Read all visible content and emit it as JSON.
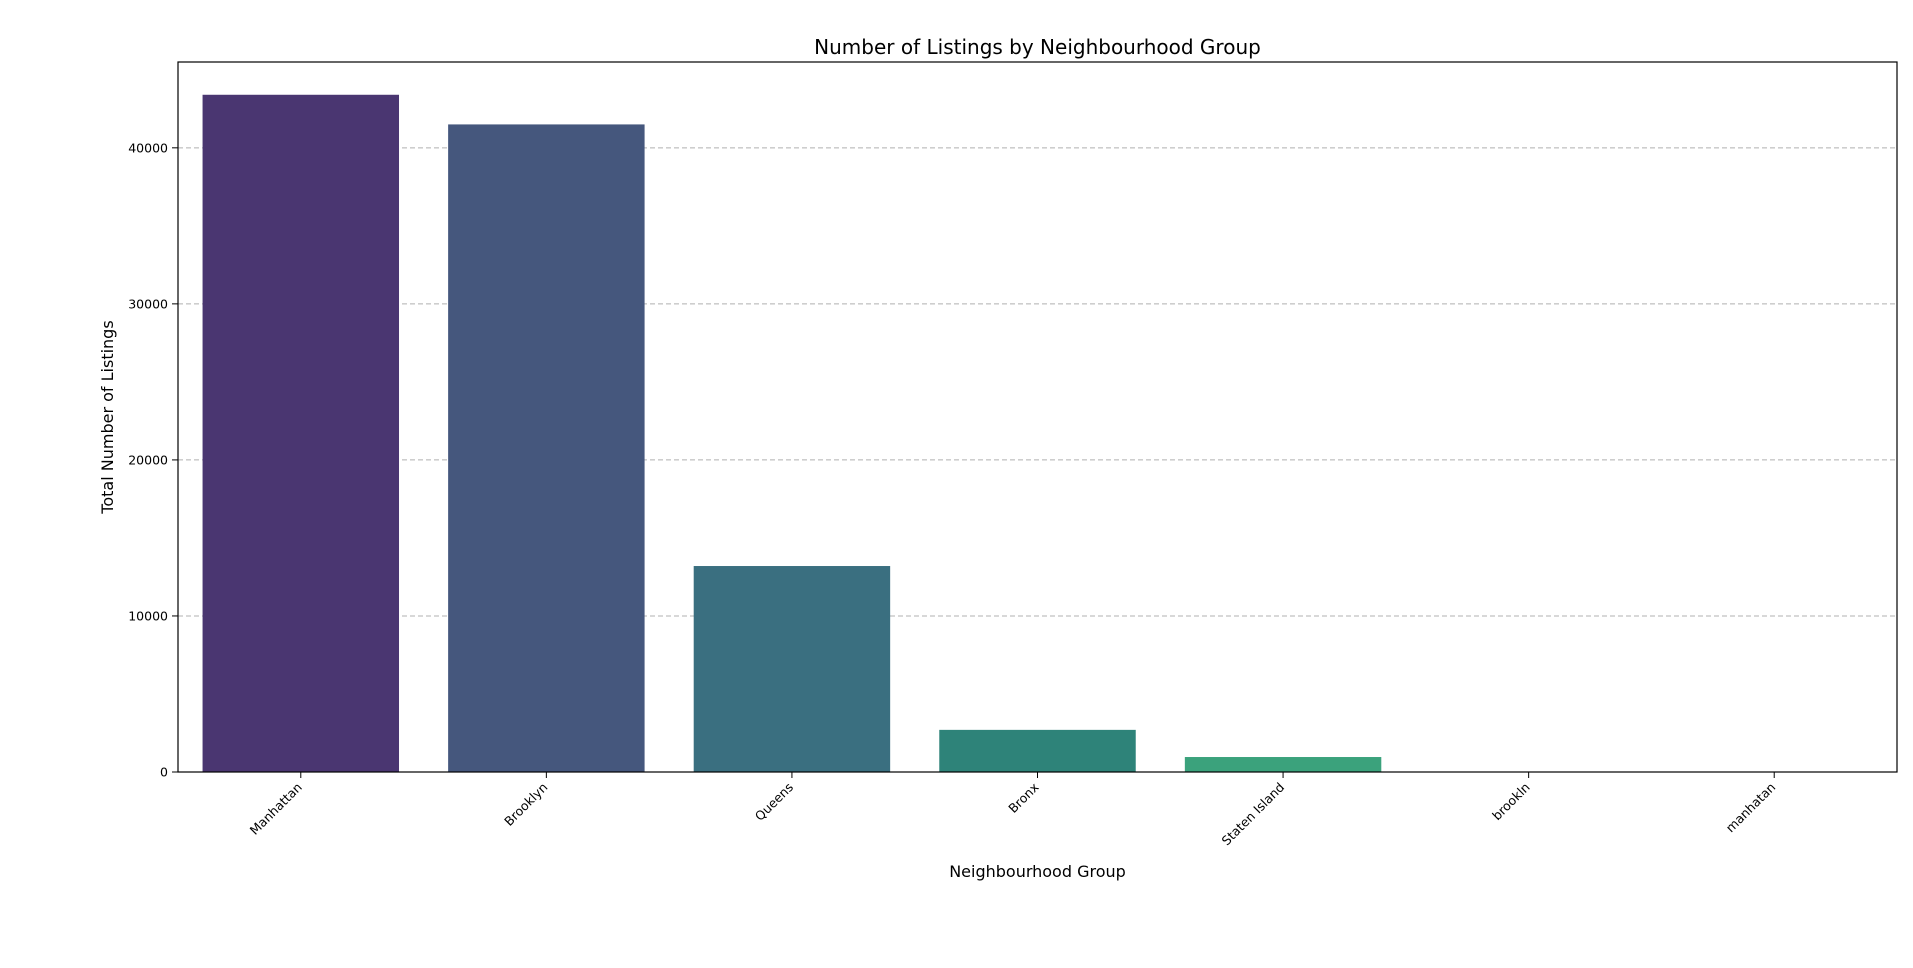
{
  "chart_data": {
    "type": "bar",
    "title": "Number of Listings by Neighbourhood Group",
    "xlabel": "Neighbourhood Group",
    "ylabel": "Total Number of Listings",
    "categories": [
      "Manhattan",
      "Brooklyn",
      "Queens",
      "Bronx",
      "Staten Island",
      "brookln",
      "manhatan"
    ],
    "values": [
      43400,
      41500,
      13200,
      2700,
      960,
      1,
      1
    ],
    "colors": [
      "#4a3671",
      "#45577d",
      "#3a6f80",
      "#2e8379",
      "#3ba27c",
      "#4bb776",
      "#6ccf6a"
    ],
    "ylim": [
      0,
      45500
    ],
    "yticks": [
      0,
      10000,
      20000,
      30000,
      40000
    ],
    "ytick_labels": [
      "0",
      "10000",
      "20000",
      "30000",
      "40000"
    ],
    "grid": "y-dashed",
    "legend": "none"
  }
}
